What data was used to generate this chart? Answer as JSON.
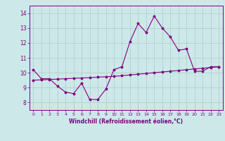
{
  "background_color": "#cde8e8",
  "line_color": "#800080",
  "grid_color": "#aacccc",
  "xlim": [
    -0.5,
    23.5
  ],
  "ylim": [
    7.5,
    14.5
  ],
  "yticks": [
    8,
    9,
    10,
    11,
    12,
    13,
    14
  ],
  "xticks": [
    0,
    1,
    2,
    3,
    4,
    5,
    6,
    7,
    8,
    9,
    10,
    11,
    12,
    13,
    14,
    15,
    16,
    17,
    18,
    19,
    20,
    21,
    22,
    23
  ],
  "xlabel": "Windchill (Refroidissement éolien,°C)",
  "curve1_x": [
    0,
    1,
    2,
    3,
    4,
    5,
    6,
    7,
    8,
    9,
    10,
    11,
    12,
    13,
    14,
    15,
    16,
    17,
    18,
    19,
    20,
    21,
    22,
    23
  ],
  "curve1_y": [
    10.2,
    9.6,
    9.6,
    9.1,
    8.7,
    8.6,
    9.3,
    8.2,
    8.2,
    8.9,
    10.2,
    10.4,
    12.1,
    13.3,
    12.7,
    13.8,
    13.0,
    12.4,
    11.5,
    11.6,
    10.1,
    10.1,
    10.4,
    10.4
  ],
  "curve2_x": [
    0,
    1,
    2,
    3,
    4,
    5,
    6,
    7,
    8,
    9,
    10,
    11,
    12,
    13,
    14,
    15,
    16,
    17,
    18,
    19,
    20,
    21,
    22,
    23
  ],
  "curve2_y": [
    9.5,
    9.52,
    9.55,
    9.57,
    9.6,
    9.62,
    9.65,
    9.67,
    9.7,
    9.73,
    9.76,
    9.8,
    9.85,
    9.9,
    9.95,
    10.0,
    10.05,
    10.1,
    10.15,
    10.2,
    10.25,
    10.3,
    10.35,
    10.4
  ]
}
